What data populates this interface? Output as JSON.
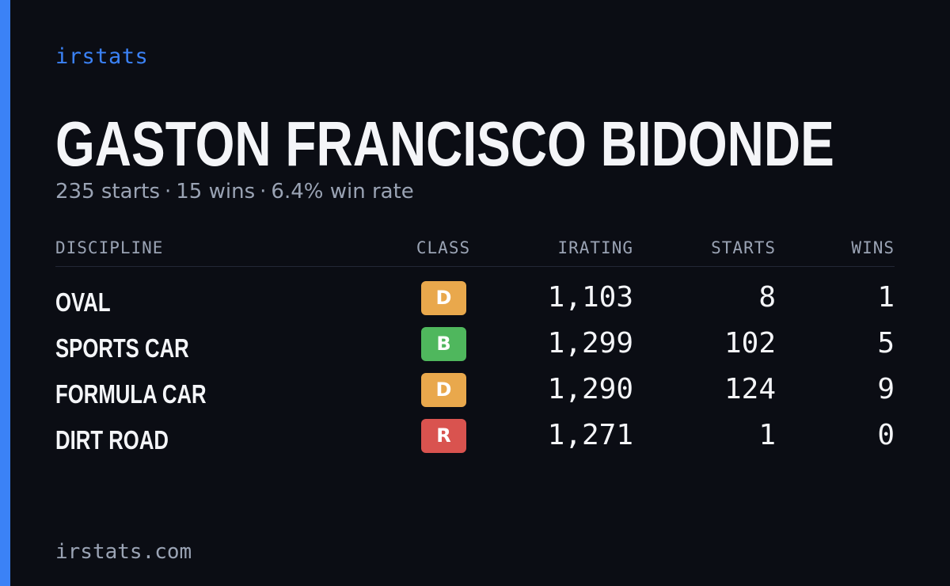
{
  "brand": "irstats",
  "player": {
    "name": "GASTON FRANCISCO BIDONDE",
    "starts_text": "235 starts",
    "wins_text": "15 wins",
    "win_rate_text": "6.4% win rate",
    "separator": "·"
  },
  "table": {
    "headers": {
      "discipline": "DISCIPLINE",
      "class": "CLASS",
      "irating": "IRATING",
      "starts": "STARTS",
      "wins": "WINS"
    },
    "rows": [
      {
        "discipline": "OVAL",
        "class": "D",
        "class_color": "#e9a84c",
        "irating": "1,103",
        "starts": "8",
        "wins": "1"
      },
      {
        "discipline": "SPORTS CAR",
        "class": "B",
        "class_color": "#4fb75d",
        "irating": "1,299",
        "starts": "102",
        "wins": "5"
      },
      {
        "discipline": "FORMULA CAR",
        "class": "D",
        "class_color": "#e9a84c",
        "irating": "1,290",
        "starts": "124",
        "wins": "9"
      },
      {
        "discipline": "DIRT ROAD",
        "class": "R",
        "class_color": "#d9534f",
        "irating": "1,271",
        "starts": "1",
        "wins": "0"
      }
    ]
  },
  "footer": "irstats.com",
  "colors": {
    "accent": "#3b82f6",
    "background": "#0b0d14",
    "muted_text": "#9aa3b4",
    "primary_text": "#f4f5f8"
  }
}
